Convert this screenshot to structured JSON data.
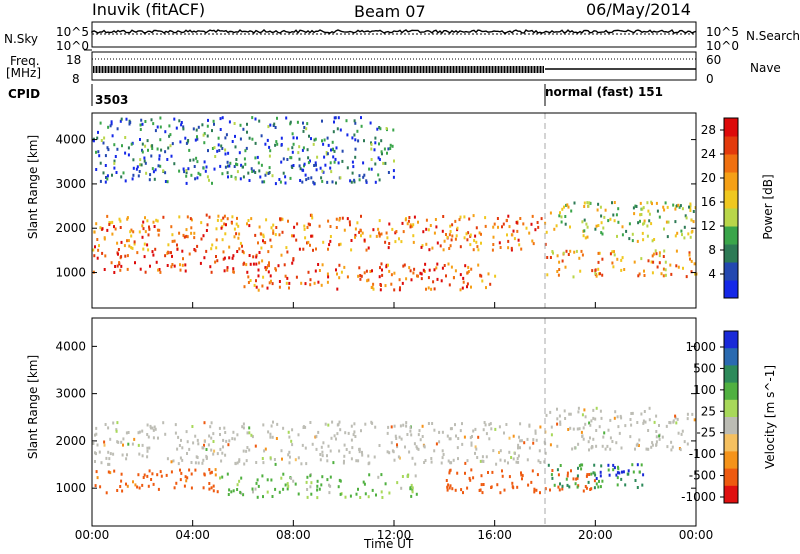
{
  "header": {
    "station": "Inuvik (fitACF)",
    "beam": "Beam 07",
    "date": "06/May/2014"
  },
  "side_labels": {
    "nsky": "N.Sky",
    "nsearch": "N.Search",
    "freq": "Freq.",
    "freq_unit": "[MHz]",
    "nave": "Nave",
    "cpid": "CPID"
  },
  "strip_ticks": {
    "noise_left_top": "10^5",
    "noise_left_bottom": "10^0",
    "noise_right_top": "10^5",
    "noise_right_bottom": "10^0",
    "freq_left_top": "18",
    "freq_left_bottom": "8",
    "freq_right_top": "60",
    "freq_right_bottom": "0"
  },
  "cpid_segments": [
    {
      "label": "3503",
      "start": "00:00"
    },
    {
      "label": "normal (fast) 151",
      "start": "18:00"
    }
  ],
  "colors": {
    "power": [
      "#1528e8",
      "#2448b0",
      "#2d7a55",
      "#3aa54a",
      "#b9d64a",
      "#f0c820",
      "#f5a016",
      "#f07010",
      "#e33a0c",
      "#dd0a0a"
    ],
    "velocity": [
      "#e01010",
      "#ee5a10",
      "#f5931a",
      "#f5c060",
      "#bcbcb4",
      "#a8d85a",
      "#50b040",
      "#2d8a5a",
      "#2a6ab0",
      "#1a2ad8"
    ],
    "gray_scatter": "#bdbdb5"
  },
  "chart_data": [
    {
      "type": "heatmap",
      "panel": "power",
      "xlabel": "",
      "ylabel": "Slant Range [km]",
      "x_range": [
        "00:00",
        "00:00"
      ],
      "ylim": [
        200,
        4600
      ],
      "yticks": [
        "1000",
        "2000",
        "3000",
        "4000"
      ],
      "colorbar": {
        "label": "Power [dB]",
        "ticks": [
          "4",
          "8",
          "12",
          "16",
          "20",
          "24",
          "28"
        ],
        "range": [
          0,
          30
        ]
      },
      "bands": [
        {
          "start_h": 0,
          "end_h": 18,
          "range_km": [
            1500,
            2300
          ],
          "power_db": 22
        },
        {
          "start_h": 0,
          "end_h": 8,
          "range_km": [
            1000,
            1500
          ],
          "power_db": 27
        },
        {
          "start_h": 6,
          "end_h": 16,
          "range_km": [
            600,
            1200
          ],
          "power_db": 24
        },
        {
          "start_h": 18,
          "end_h": 24,
          "range_km": [
            900,
            1500
          ],
          "power_db": 20
        },
        {
          "start_h": 18,
          "end_h": 24,
          "range_km": [
            1700,
            2600
          ],
          "power_db": 14
        },
        {
          "start_h": 0,
          "end_h": 12,
          "range_km": [
            3000,
            4500
          ],
          "power_db": 6
        }
      ]
    },
    {
      "type": "heatmap",
      "panel": "velocity",
      "xlabel": "Time UT",
      "ylabel": "Slant Range [km]",
      "x_range": [
        "00:00",
        "00:00"
      ],
      "xticks": [
        "00:00",
        "04:00",
        "08:00",
        "12:00",
        "16:00",
        "20:00",
        "00:00"
      ],
      "ylim": [
        200,
        4600
      ],
      "yticks": [
        "1000",
        "2000",
        "3000",
        "4000"
      ],
      "colorbar": {
        "label": "Velocity [m s^-1]",
        "ticks": [
          "1000",
          "500",
          "100",
          "25",
          "-25",
          "-100",
          "-500",
          "-1000"
        ]
      },
      "bands": [
        {
          "start_h": 0,
          "end_h": 18,
          "range_km": [
            1500,
            2400
          ],
          "velocity": 0
        },
        {
          "start_h": 5,
          "end_h": 13,
          "range_km": [
            800,
            1300
          ],
          "velocity": 150
        },
        {
          "start_h": 0,
          "end_h": 5,
          "range_km": [
            900,
            1400
          ],
          "velocity": -200
        },
        {
          "start_h": 14,
          "end_h": 20,
          "range_km": [
            900,
            1400
          ],
          "velocity": -300
        },
        {
          "start_h": 18,
          "end_h": 22,
          "range_km": [
            1000,
            1500
          ],
          "velocity": 300
        },
        {
          "start_h": 20,
          "end_h": 22,
          "range_km": [
            1200,
            1500
          ],
          "velocity": 800
        },
        {
          "start_h": 18,
          "end_h": 24,
          "range_km": [
            1800,
            2700
          ],
          "velocity": 0
        }
      ]
    }
  ]
}
